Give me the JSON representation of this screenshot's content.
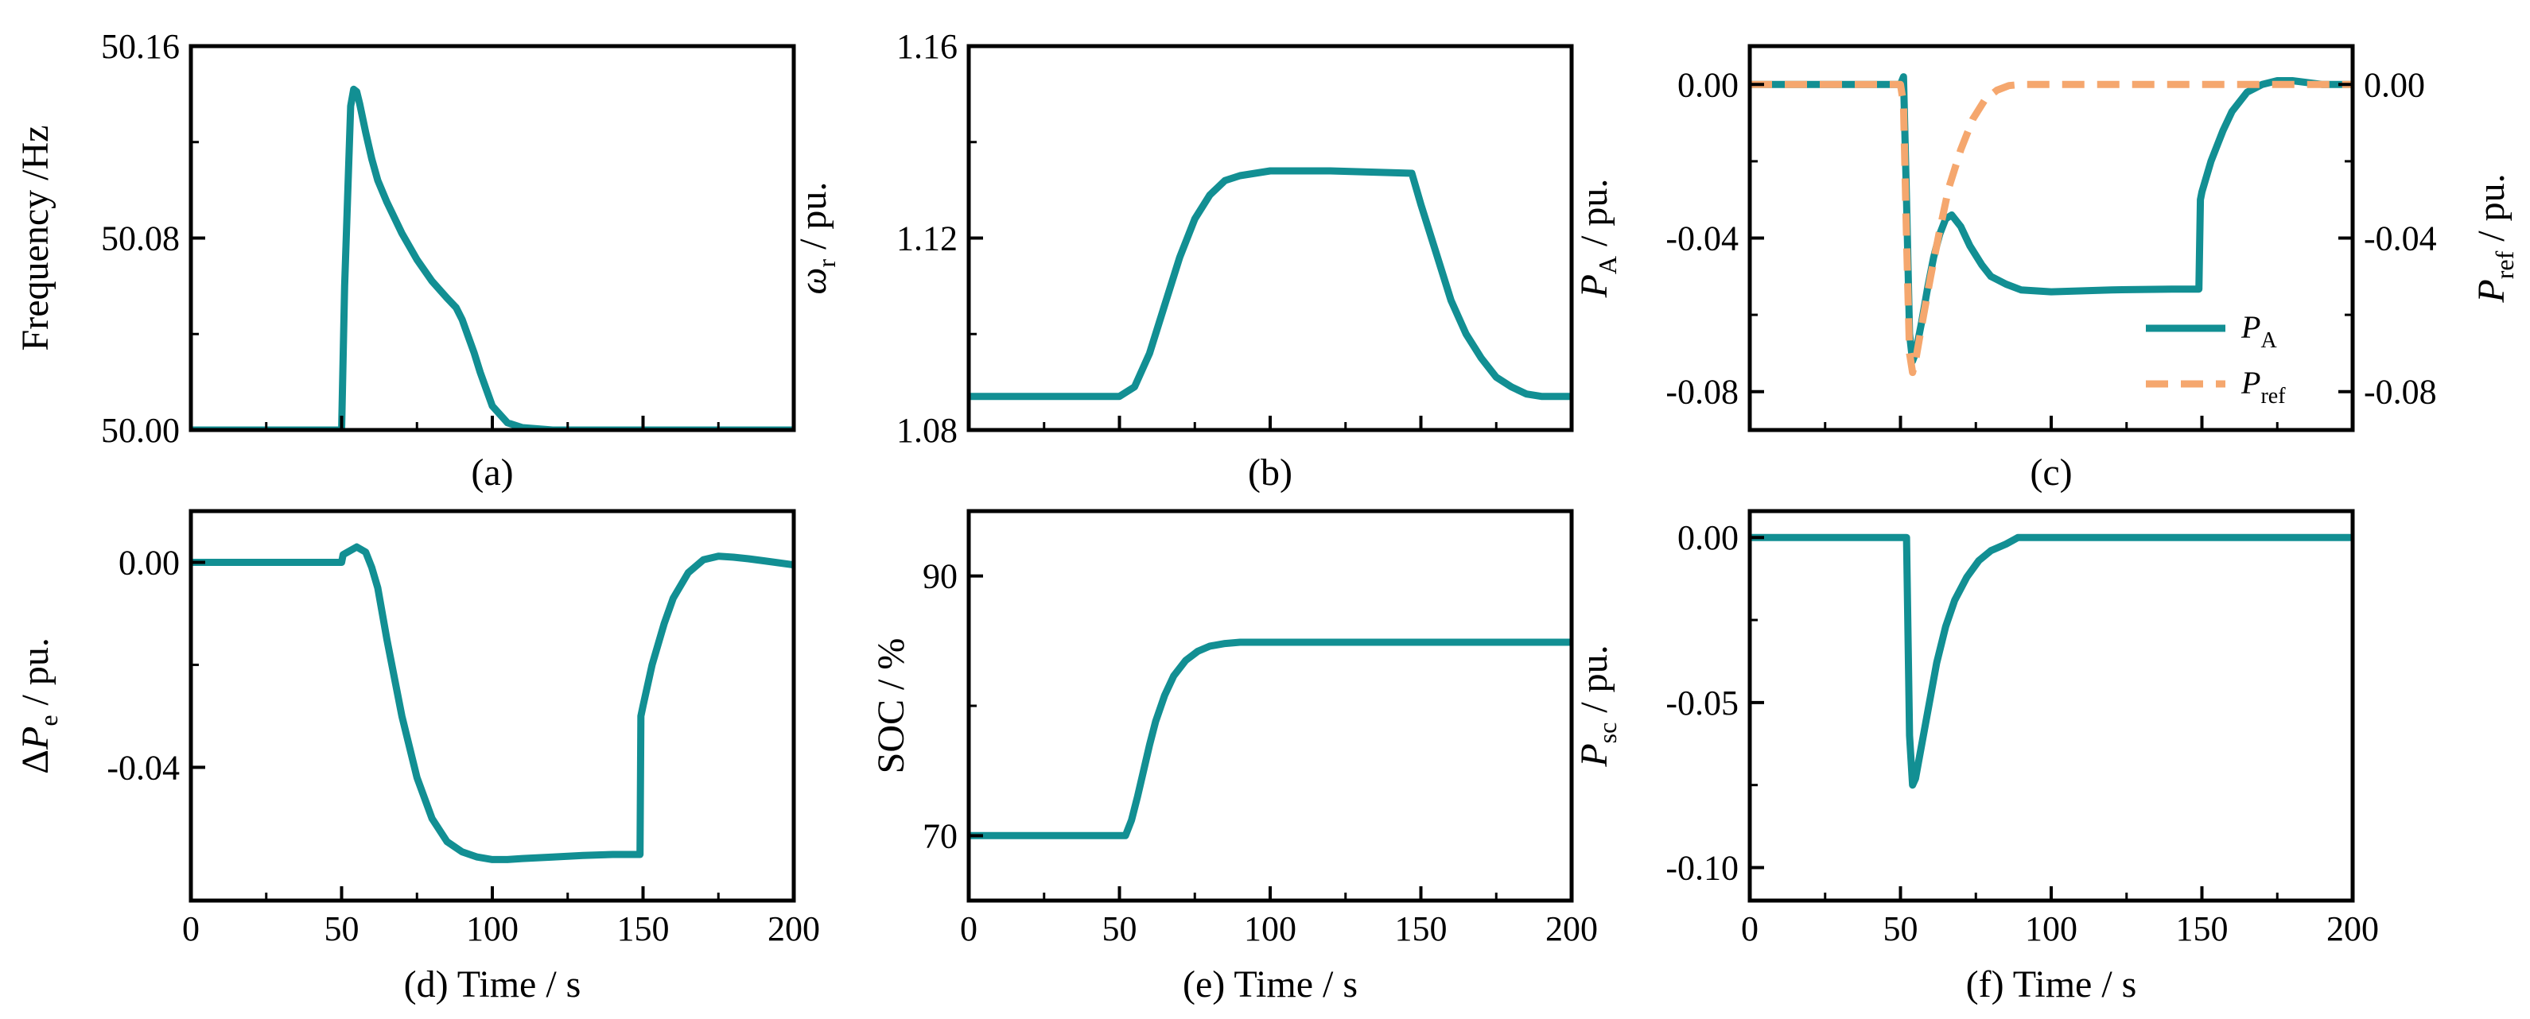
{
  "colors": {
    "teal": "#128F93",
    "orange": "#F5A76E",
    "axis": "#000000"
  },
  "chart_data": [
    {
      "id": "a",
      "type": "line",
      "caption": "(a)",
      "ylabel": {
        "text": "Frequency /Hz"
      },
      "xlim": [
        0,
        200
      ],
      "ylim": [
        50.0,
        50.16
      ],
      "yticks": [
        50.0,
        50.08,
        50.16
      ],
      "ytick_labels": [
        "50.00",
        "50.08",
        "50.16"
      ],
      "xticks": [
        0,
        50,
        100,
        150,
        200
      ],
      "xtick_labels": [],
      "series": [
        {
          "name": "Frequency",
          "color": "#128F93",
          "dash": false,
          "x": [
            0,
            50,
            51,
            53,
            54,
            55,
            56,
            58,
            60,
            62,
            65,
            70,
            75,
            80,
            85,
            88,
            90,
            92,
            94,
            96,
            98,
            100,
            105,
            110,
            120,
            200
          ],
          "y": [
            50.0,
            50.0,
            50.06,
            50.135,
            50.142,
            50.141,
            50.136,
            50.124,
            50.113,
            50.104,
            50.095,
            50.082,
            50.071,
            50.062,
            50.055,
            50.051,
            50.046,
            50.039,
            50.032,
            50.024,
            50.017,
            50.01,
            50.003,
            50.001,
            50.0,
            50.0
          ]
        }
      ]
    },
    {
      "id": "b",
      "type": "line",
      "caption": "(b)",
      "ylabel": {
        "symbol": "ω",
        "sub": "r",
        "unit": " / pu."
      },
      "xlim": [
        0,
        200
      ],
      "ylim": [
        1.08,
        1.16
      ],
      "yticks": [
        1.08,
        1.12,
        1.16
      ],
      "ytick_labels": [
        "1.08",
        "1.12",
        "1.16"
      ],
      "xticks": [
        0,
        50,
        100,
        150,
        200
      ],
      "xtick_labels": [],
      "series": [
        {
          "name": "ωr",
          "color": "#128F93",
          "dash": false,
          "x": [
            0,
            50,
            55,
            60,
            65,
            70,
            75,
            80,
            85,
            90,
            95,
            100,
            120,
            147,
            150,
            155,
            160,
            165,
            170,
            175,
            180,
            185,
            190,
            195,
            200
          ],
          "y": [
            1.087,
            1.087,
            1.089,
            1.096,
            1.106,
            1.116,
            1.124,
            1.129,
            1.132,
            1.133,
            1.1335,
            1.134,
            1.134,
            1.1335,
            1.127,
            1.117,
            1.107,
            1.1,
            1.095,
            1.091,
            1.089,
            1.0875,
            1.087,
            1.087,
            1.087
          ]
        }
      ]
    },
    {
      "id": "c",
      "type": "line",
      "caption": "(c)",
      "ylabel": {
        "symbol": "P",
        "sub": "A",
        "unit": " / pu."
      },
      "ylabel_right": {
        "symbol": "P",
        "sub": "ref",
        "unit": " / pu."
      },
      "xlim": [
        0,
        200
      ],
      "ylim": [
        -0.09,
        0.01
      ],
      "yticks": [
        0.0,
        -0.04,
        -0.08
      ],
      "ytick_labels": [
        "0.00",
        "-0.04",
        "-0.08"
      ],
      "yticks_right": [
        0.0,
        -0.04,
        -0.08
      ],
      "ytick_labels_right": [
        "0.00",
        "-0.04",
        "-0.08"
      ],
      "xticks": [
        0,
        50,
        100,
        150,
        200
      ],
      "xtick_labels": [],
      "legend": {
        "position": "lower-right",
        "entries": [
          {
            "symbol": "P",
            "sub": "A",
            "color": "#128F93",
            "dash": false
          },
          {
            "symbol": "P",
            "sub": "ref",
            "color": "#F5A76E",
            "dash": true
          }
        ]
      },
      "series": [
        {
          "name": "PA",
          "color": "#128F93",
          "dash": false,
          "x": [
            0,
            50,
            51,
            52,
            53,
            54,
            55,
            57,
            59,
            61,
            63,
            65,
            67,
            70,
            73,
            77,
            80,
            85,
            90,
            100,
            120,
            140,
            149,
            149.5,
            150,
            153,
            157,
            160,
            165,
            170,
            175,
            180,
            190,
            200
          ],
          "y": [
            0.0,
            0.0,
            0.002,
            -0.03,
            -0.065,
            -0.072,
            -0.07,
            -0.062,
            -0.053,
            -0.045,
            -0.039,
            -0.035,
            -0.034,
            -0.037,
            -0.042,
            -0.047,
            -0.05,
            -0.052,
            -0.0535,
            -0.054,
            -0.0535,
            -0.0533,
            -0.0533,
            -0.03,
            -0.028,
            -0.02,
            -0.012,
            -0.007,
            -0.002,
            0.0,
            0.001,
            0.001,
            0.0,
            0.0
          ]
        },
        {
          "name": "Pref",
          "color": "#F5A76E",
          "dash": true,
          "x": [
            0,
            50,
            51,
            52,
            53,
            54,
            55,
            57,
            60,
            63,
            66,
            70,
            74,
            78,
            82,
            86,
            90,
            200
          ],
          "y": [
            0.0,
            0.0,
            -0.005,
            -0.04,
            -0.07,
            -0.075,
            -0.072,
            -0.063,
            -0.05,
            -0.038,
            -0.027,
            -0.017,
            -0.009,
            -0.004,
            -0.0015,
            -0.0003,
            0.0,
            0.0
          ]
        }
      ]
    },
    {
      "id": "d",
      "type": "line",
      "caption": "(d) Time / s",
      "ylabel": {
        "prefix": "Δ",
        "symbol": "P",
        "sub": "e",
        "unit": " / pu."
      },
      "xlim": [
        0,
        200
      ],
      "ylim": [
        -0.066,
        0.01
      ],
      "yticks": [
        0.0,
        -0.04
      ],
      "ytick_labels": [
        "0.00",
        "-0.04"
      ],
      "xticks": [
        0,
        50,
        100,
        150,
        200
      ],
      "xtick_labels": [
        "0",
        "50",
        "100",
        "150",
        "200"
      ],
      "series": [
        {
          "name": "ΔPe",
          "color": "#128F93",
          "dash": false,
          "x": [
            0,
            50,
            50.5,
            52,
            55,
            58,
            60,
            62,
            65,
            70,
            75,
            80,
            85,
            90,
            95,
            100,
            105,
            110,
            120,
            130,
            140,
            148,
            149,
            149.3,
            150,
            153,
            157,
            160,
            165,
            170,
            175,
            180,
            185,
            190,
            200
          ],
          "y": [
            0.0,
            0.0,
            0.0015,
            0.002,
            0.003,
            0.002,
            -0.001,
            -0.005,
            -0.015,
            -0.03,
            -0.042,
            -0.05,
            -0.0545,
            -0.0565,
            -0.0575,
            -0.058,
            -0.058,
            -0.0578,
            -0.0575,
            -0.0572,
            -0.057,
            -0.057,
            -0.057,
            -0.03,
            -0.028,
            -0.02,
            -0.012,
            -0.007,
            -0.002,
            0.0005,
            0.0012,
            0.001,
            0.0007,
            0.0003,
            -0.0005
          ]
        }
      ]
    },
    {
      "id": "e",
      "type": "line",
      "caption": "(e) Time / s",
      "ylabel": {
        "text": "SOC / %"
      },
      "xlim": [
        0,
        200
      ],
      "ylim": [
        65,
        95
      ],
      "yticks": [
        70,
        90
      ],
      "ytick_labels": [
        "70",
        "90"
      ],
      "xticks": [
        0,
        50,
        100,
        150,
        200
      ],
      "xtick_labels": [
        "0",
        "50",
        "100",
        "150",
        "200"
      ],
      "series": [
        {
          "name": "SOC",
          "color": "#128F93",
          "dash": false,
          "x": [
            0,
            52,
            54,
            56,
            58,
            60,
            62,
            65,
            68,
            72,
            76,
            80,
            85,
            90,
            100,
            200
          ],
          "y": [
            70.0,
            70.0,
            71.2,
            73.0,
            75.0,
            77.0,
            78.8,
            80.8,
            82.3,
            83.5,
            84.2,
            84.6,
            84.8,
            84.9,
            84.9,
            84.9
          ]
        }
      ]
    },
    {
      "id": "f",
      "type": "line",
      "caption": "(f) Time / s",
      "ylabel": {
        "symbol": "P",
        "sub": "sc",
        "unit": " / pu."
      },
      "xlim": [
        0,
        200
      ],
      "ylim": [
        -0.11,
        0.008
      ],
      "yticks": [
        0.0,
        -0.05,
        -0.1
      ],
      "ytick_labels": [
        "0.00",
        "-0.05",
        "-0.10"
      ],
      "xticks": [
        0,
        50,
        100,
        150,
        200
      ],
      "xtick_labels": [
        "0",
        "50",
        "100",
        "150",
        "200"
      ],
      "series": [
        {
          "name": "Psc",
          "color": "#128F93",
          "dash": false,
          "x": [
            0,
            52,
            53,
            54,
            55,
            56,
            58,
            60,
            62,
            65,
            68,
            72,
            76,
            80,
            85,
            88,
            89,
            90,
            200
          ],
          "y": [
            0.0,
            0.0,
            -0.06,
            -0.075,
            -0.073,
            -0.068,
            -0.058,
            -0.048,
            -0.038,
            -0.027,
            -0.019,
            -0.012,
            -0.007,
            -0.004,
            -0.002,
            -0.0005,
            0.0,
            0.0,
            0.0
          ]
        }
      ]
    }
  ]
}
